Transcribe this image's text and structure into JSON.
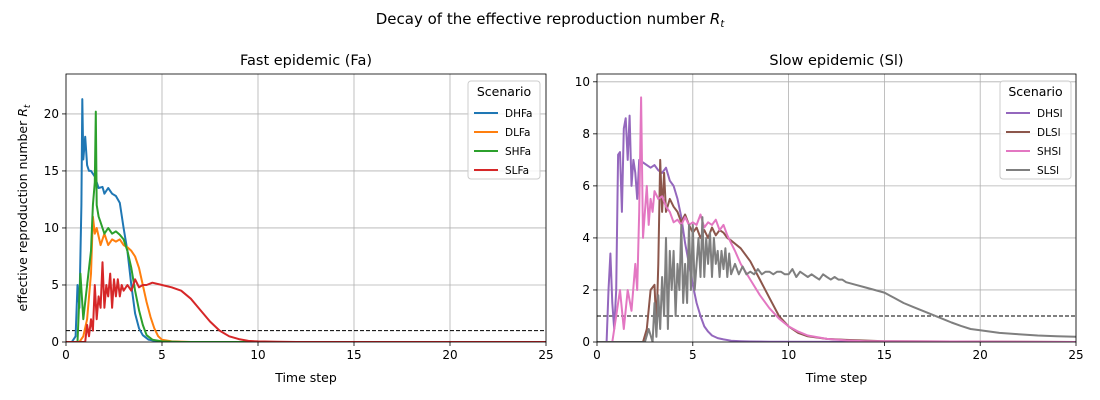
{
  "figure": {
    "suptitle_main": "Decay of the effective reproduction number ",
    "suptitle_var": "R",
    "suptitle_sub": "t"
  },
  "chart_data": [
    {
      "type": "line",
      "title": "Fast epidemic (Fa)",
      "xlabel": "Time step",
      "ylabel_main": "effective reproduction number ",
      "ylabel_var": "R",
      "ylabel_sub": "t",
      "xlim": [
        0,
        25
      ],
      "ylim": [
        0,
        23.5
      ],
      "xticks": [
        0,
        5,
        10,
        15,
        20,
        25
      ],
      "yticks": [
        0,
        5,
        10,
        15,
        20
      ],
      "grid": true,
      "reference_line": {
        "y": 1,
        "style": "dashed",
        "color": "#000000"
      },
      "legend": {
        "title": "Scenario",
        "placement": "top-right"
      },
      "series": [
        {
          "name": "DHFa",
          "color": "#1f77b4",
          "x": [
            0,
            0.3,
            0.5,
            0.6,
            0.7,
            0.8,
            0.85,
            0.9,
            1.0,
            1.1,
            1.2,
            1.3,
            1.5,
            1.7,
            1.9,
            2.0,
            2.2,
            2.4,
            2.6,
            2.8,
            3.0,
            3.2,
            3.4,
            3.6,
            3.8,
            4.0,
            4.3,
            4.8,
            6,
            25
          ],
          "y": [
            0,
            0,
            0.5,
            5,
            3,
            12,
            21.3,
            16,
            18,
            15.5,
            15,
            15,
            14.5,
            13.5,
            13.6,
            13,
            13.5,
            13,
            12.8,
            12.2,
            10,
            8,
            5,
            2.5,
            1.2,
            0.6,
            0.2,
            0.05,
            0,
            0
          ]
        },
        {
          "name": "DLFa",
          "color": "#ff7f0e",
          "x": [
            0,
            0.7,
            0.9,
            1.1,
            1.3,
            1.4,
            1.5,
            1.6,
            1.8,
            2.0,
            2.2,
            2.4,
            2.6,
            2.8,
            3.0,
            3.2,
            3.4,
            3.6,
            3.8,
            4.0,
            4.2,
            4.4,
            4.6,
            4.8,
            5.0,
            5.5,
            6.5,
            25
          ],
          "y": [
            0,
            0,
            0.5,
            2,
            6,
            11,
            9.5,
            10,
            8.5,
            9.5,
            8.5,
            9,
            8.8,
            9,
            8.5,
            8.3,
            8,
            7.5,
            6.5,
            5,
            3.5,
            2.2,
            1.2,
            0.5,
            0.2,
            0.05,
            0,
            0
          ]
        },
        {
          "name": "SHFa",
          "color": "#2ca02c",
          "x": [
            0,
            0.6,
            0.7,
            0.75,
            0.9,
            1.1,
            1.3,
            1.4,
            1.5,
            1.55,
            1.6,
            1.7,
            1.8,
            2.0,
            2.2,
            2.4,
            2.6,
            2.8,
            3.0,
            3.2,
            3.4,
            3.6,
            3.8,
            4.0,
            4.2,
            4.5,
            5.0,
            6,
            25
          ],
          "y": [
            0,
            0,
            4,
            6,
            2,
            5,
            8,
            12,
            14,
            20.2,
            12,
            11,
            10.5,
            9.5,
            10,
            9.5,
            9.7,
            9.4,
            9.0,
            8.0,
            6.5,
            4.5,
            2.8,
            1.5,
            0.6,
            0.2,
            0.05,
            0,
            0
          ]
        },
        {
          "name": "SLFa",
          "color": "#d62728",
          "x": [
            0,
            1.0,
            1.1,
            1.2,
            1.3,
            1.4,
            1.5,
            1.6,
            1.7,
            1.8,
            1.9,
            2.0,
            2.1,
            2.2,
            2.3,
            2.4,
            2.5,
            2.6,
            2.7,
            2.8,
            2.9,
            3.0,
            3.2,
            3.4,
            3.6,
            3.8,
            4.0,
            4.2,
            4.5,
            5.0,
            5.5,
            6.0,
            6.5,
            7.0,
            7.5,
            8.0,
            8.5,
            9.0,
            9.5,
            10.0,
            11,
            12,
            25
          ],
          "y": [
            0,
            0,
            1.5,
            0.5,
            2,
            1,
            5,
            2,
            4,
            3,
            7,
            3,
            5,
            4,
            6,
            3,
            5.5,
            4,
            5.5,
            4,
            5,
            4.5,
            5,
            4.5,
            5.5,
            4.8,
            5,
            5,
            5.2,
            5,
            4.8,
            4.5,
            3.8,
            2.8,
            1.8,
            1.0,
            0.5,
            0.25,
            0.1,
            0.05,
            0.02,
            0,
            0
          ]
        }
      ]
    },
    {
      "type": "line",
      "title": "Slow epidemic (Sl)",
      "xlabel": "Time step",
      "xlim": [
        0,
        25
      ],
      "ylim": [
        0,
        10.3
      ],
      "xticks": [
        0,
        5,
        10,
        15,
        20,
        25
      ],
      "yticks": [
        0,
        2,
        4,
        6,
        8,
        10
      ],
      "grid": true,
      "reference_line": {
        "y": 1,
        "style": "dashed",
        "color": "#000000"
      },
      "legend": {
        "title": "Scenario",
        "placement": "top-right"
      },
      "series": [
        {
          "name": "DHSl",
          "color": "#9467bd",
          "x": [
            0,
            0.5,
            0.6,
            0.7,
            0.8,
            0.9,
            1.0,
            1.1,
            1.2,
            1.3,
            1.4,
            1.5,
            1.6,
            1.7,
            1.8,
            1.9,
            2.0,
            2.1,
            2.2,
            2.4,
            2.6,
            2.8,
            3.0,
            3.2,
            3.4,
            3.6,
            3.8,
            4.0,
            4.2,
            4.4,
            4.6,
            4.8,
            5.0,
            5.2,
            5.4,
            5.6,
            5.8,
            6.0,
            6.3,
            6.6,
            7.0,
            7.5,
            8.0,
            9.0,
            25
          ],
          "y": [
            0,
            0,
            2,
            3.4,
            1.5,
            0.5,
            2,
            7.2,
            7.3,
            5,
            8.2,
            8.6,
            7,
            8.7,
            6,
            7,
            6.5,
            5.5,
            7,
            6.9,
            6.8,
            6.7,
            6.8,
            6.6,
            6.5,
            6.7,
            6.2,
            6.0,
            5.5,
            4.8,
            3.8,
            3.0,
            2.2,
            1.5,
            1.0,
            0.6,
            0.4,
            0.25,
            0.15,
            0.1,
            0.05,
            0.03,
            0.02,
            0.01,
            0
          ]
        },
        {
          "name": "DLSl",
          "color": "#8c564b",
          "x": [
            0,
            2.4,
            2.6,
            2.8,
            3.0,
            3.1,
            3.2,
            3.3,
            3.4,
            3.5,
            3.6,
            3.8,
            4.0,
            4.2,
            4.4,
            4.6,
            4.8,
            5.0,
            5.2,
            5.4,
            5.6,
            5.8,
            6.0,
            6.2,
            6.4,
            6.6,
            6.8,
            7.0,
            7.5,
            8.0,
            8.5,
            9.0,
            9.5,
            10.0,
            10.5,
            11.0,
            12.0,
            13.0,
            15.0,
            25
          ],
          "y": [
            0,
            0,
            0.5,
            2,
            2.2,
            0.5,
            3,
            7,
            5,
            6.5,
            5,
            5.5,
            5.2,
            5,
            4.6,
            4.9,
            4.5,
            4.2,
            4.4,
            4.0,
            4.3,
            4.0,
            4.4,
            4.1,
            4.3,
            4.2,
            4.0,
            3.9,
            3.6,
            3.1,
            2.4,
            1.7,
            1.0,
            0.6,
            0.35,
            0.22,
            0.12,
            0.08,
            0.03,
            0
          ]
        },
        {
          "name": "SHSl",
          "color": "#e377c2",
          "x": [
            0,
            0.8,
            1.0,
            1.2,
            1.4,
            1.6,
            1.8,
            2.0,
            2.1,
            2.2,
            2.3,
            2.4,
            2.5,
            2.6,
            2.7,
            2.8,
            2.9,
            3.0,
            3.2,
            3.4,
            3.6,
            3.8,
            4.0,
            4.2,
            4.4,
            4.6,
            4.8,
            5.0,
            5.2,
            5.4,
            5.6,
            5.8,
            6.0,
            6.2,
            6.4,
            6.6,
            6.8,
            7.0,
            7.2,
            7.5,
            8.0,
            8.5,
            9.0,
            9.5,
            10.0,
            10.5,
            11.0,
            12.0,
            13.0,
            14.0,
            25
          ],
          "y": [
            0,
            0,
            1,
            2,
            0.5,
            2,
            1.2,
            3,
            2,
            5,
            9.4,
            4,
            5,
            6,
            4.5,
            5.5,
            5,
            5.8,
            5.5,
            5.6,
            5.2,
            5.0,
            4.6,
            4.7,
            4.5,
            4.8,
            4.5,
            4.6,
            4.5,
            4.9,
            4.4,
            4.6,
            4.5,
            4.7,
            4.3,
            4.5,
            4.1,
            3.8,
            3.5,
            3.0,
            2.4,
            1.8,
            1.3,
            0.9,
            0.6,
            0.4,
            0.25,
            0.12,
            0.06,
            0.03,
            0
          ]
        },
        {
          "name": "SLSl",
          "color": "#7f7f7f",
          "x": [
            0,
            2.5,
            2.7,
            2.9,
            3.0,
            3.1,
            3.2,
            3.3,
            3.4,
            3.5,
            3.6,
            3.7,
            3.8,
            3.9,
            4.0,
            4.1,
            4.2,
            4.3,
            4.4,
            4.5,
            4.6,
            4.7,
            4.8,
            4.9,
            5.0,
            5.1,
            5.2,
            5.3,
            5.4,
            5.5,
            5.6,
            5.7,
            5.8,
            5.9,
            6.0,
            6.1,
            6.2,
            6.3,
            6.4,
            6.5,
            6.6,
            6.7,
            6.8,
            6.9,
            7.0,
            7.2,
            7.4,
            7.6,
            7.8,
            8.0,
            8.2,
            8.4,
            8.6,
            8.8,
            9.0,
            9.2,
            9.4,
            9.6,
            9.8,
            10.0,
            10.2,
            10.4,
            10.6,
            10.8,
            11.0,
            11.2,
            11.4,
            11.6,
            11.8,
            12.0,
            12.2,
            12.4,
            12.6,
            12.8,
            13.0,
            13.5,
            14.0,
            14.5,
            15.0,
            15.5,
            16.0,
            16.5,
            17.0,
            17.5,
            18.0,
            18.5,
            19.0,
            19.5,
            20.0,
            21.0,
            22.0,
            23.0,
            24.0,
            25.0
          ],
          "y": [
            0,
            0,
            0.5,
            0,
            1.5,
            0.2,
            1.8,
            0.5,
            2.5,
            1,
            4,
            0.5,
            3.5,
            2,
            3.5,
            1,
            3,
            2,
            4.5,
            1.5,
            3,
            1.5,
            4.5,
            2,
            4.5,
            2,
            3,
            4,
            2.5,
            4.8,
            2.5,
            4,
            3,
            4.2,
            2.5,
            4,
            3,
            3.5,
            2.5,
            3.5,
            2.8,
            3.6,
            2.5,
            3.4,
            2.6,
            3.0,
            2.6,
            2.9,
            2.6,
            2.7,
            2.6,
            2.8,
            2.6,
            2.7,
            2.7,
            2.6,
            2.7,
            2.7,
            2.6,
            2.6,
            2.8,
            2.5,
            2.7,
            2.6,
            2.5,
            2.6,
            2.5,
            2.4,
            2.6,
            2.5,
            2.4,
            2.5,
            2.4,
            2.4,
            2.3,
            2.2,
            2.1,
            2.0,
            1.9,
            1.7,
            1.5,
            1.35,
            1.2,
            1.05,
            0.9,
            0.75,
            0.62,
            0.5,
            0.45,
            0.35,
            0.3,
            0.25,
            0.22,
            0.2
          ]
        }
      ]
    }
  ]
}
